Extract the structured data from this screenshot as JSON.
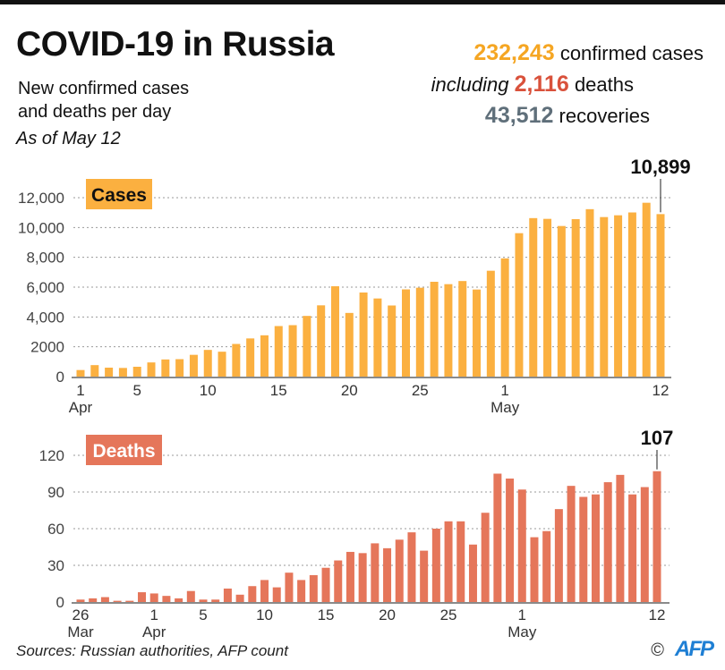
{
  "header": {
    "title": "COVID-19 in Russia",
    "subtitle_line1": "New confirmed cases",
    "subtitle_line2": "and deaths per day",
    "as_of": "As of May 12"
  },
  "stats": {
    "confirmed_value": "232,243",
    "confirmed_label": "confirmed cases",
    "including_label": "including",
    "deaths_value": "2,116",
    "deaths_label": "deaths",
    "recoveries_value": "43,512",
    "recoveries_label": "recoveries",
    "colors": {
      "cases": "#f5a623",
      "deaths": "#d9513b",
      "recoveries": "#5f6f7a"
    }
  },
  "footer": {
    "sources": "Sources: Russian authorities, AFP count",
    "copyright": "©",
    "logo": "AFP"
  },
  "chart_data": [
    {
      "type": "bar",
      "title": "Cases",
      "color": "#fbb040",
      "ylim": [
        0,
        12000
      ],
      "yticks": [
        0,
        2000,
        4000,
        6000,
        8000,
        10000,
        12000
      ],
      "ytick_labels": [
        "0",
        "2000",
        "4,000",
        "6,000",
        "8,000",
        "10,000",
        "12,000"
      ],
      "grid": true,
      "x": [
        "Apr 1",
        "Apr 2",
        "Apr 3",
        "Apr 4",
        "Apr 5",
        "Apr 6",
        "Apr 7",
        "Apr 8",
        "Apr 9",
        "Apr 10",
        "Apr 11",
        "Apr 12",
        "Apr 13",
        "Apr 14",
        "Apr 15",
        "Apr 16",
        "Apr 17",
        "Apr 18",
        "Apr 19",
        "Apr 20",
        "Apr 21",
        "Apr 22",
        "Apr 23",
        "Apr 24",
        "Apr 25",
        "Apr 26",
        "Apr 27",
        "Apr 28",
        "Apr 29",
        "Apr 30",
        "May 1",
        "May 2",
        "May 3",
        "May 4",
        "May 5",
        "May 6",
        "May 7",
        "May 8",
        "May 9",
        "May 10",
        "May 11",
        "May 12"
      ],
      "values": [
        440,
        770,
        600,
        580,
        660,
        950,
        1150,
        1170,
        1460,
        1790,
        1670,
        2190,
        2560,
        2770,
        3390,
        3450,
        4070,
        4780,
        6060,
        4270,
        5640,
        5240,
        4770,
        5850,
        5960,
        6360,
        6200,
        6410,
        5840,
        7100,
        7930,
        9620,
        10630,
        10580,
        10100,
        10560,
        11230,
        10700,
        10820,
        11010,
        11660,
        10899
      ],
      "xticks": [
        {
          "index": 0,
          "label": "1",
          "month": "Apr"
        },
        {
          "index": 4,
          "label": "5",
          "month": ""
        },
        {
          "index": 9,
          "label": "10",
          "month": ""
        },
        {
          "index": 14,
          "label": "15",
          "month": ""
        },
        {
          "index": 19,
          "label": "20",
          "month": ""
        },
        {
          "index": 24,
          "label": "25",
          "month": ""
        },
        {
          "index": 30,
          "label": "1",
          "month": "May"
        },
        {
          "index": 41,
          "label": "12",
          "month": ""
        }
      ],
      "annotation": {
        "index": 41,
        "text": "10,899"
      }
    },
    {
      "type": "bar",
      "title": "Deaths",
      "color": "#e5765a",
      "ylim": [
        0,
        120
      ],
      "yticks": [
        0,
        30,
        60,
        90,
        120
      ],
      "ytick_labels": [
        "0",
        "30",
        "60",
        "90",
        "120"
      ],
      "grid": true,
      "x": [
        "Mar 26",
        "Mar 27",
        "Mar 28",
        "Mar 29",
        "Mar 30",
        "Mar 31",
        "Apr 1",
        "Apr 2",
        "Apr 3",
        "Apr 4",
        "Apr 5",
        "Apr 6",
        "Apr 7",
        "Apr 8",
        "Apr 9",
        "Apr 10",
        "Apr 11",
        "Apr 12",
        "Apr 13",
        "Apr 14",
        "Apr 15",
        "Apr 16",
        "Apr 17",
        "Apr 18",
        "Apr 19",
        "Apr 20",
        "Apr 21",
        "Apr 22",
        "Apr 23",
        "Apr 24",
        "Apr 25",
        "Apr 26",
        "Apr 27",
        "Apr 28",
        "Apr 29",
        "Apr 30",
        "May 1",
        "May 2",
        "May 3",
        "May 4",
        "May 5",
        "May 6",
        "May 7",
        "May 8",
        "May 9",
        "May 10",
        "May 11",
        "May 12"
      ],
      "values": [
        2,
        3,
        4,
        1,
        1,
        8,
        7,
        5,
        3,
        9,
        2,
        2,
        11,
        6,
        13,
        18,
        12,
        24,
        18,
        22,
        28,
        34,
        41,
        40,
        48,
        44,
        51,
        57,
        42,
        60,
        66,
        66,
        47,
        73,
        105,
        101,
        92,
        53,
        58,
        76,
        95,
        86,
        88,
        98,
        104,
        88,
        94,
        107
      ],
      "xticks": [
        {
          "index": 0,
          "label": "26",
          "month": "Mar"
        },
        {
          "index": 6,
          "label": "1",
          "month": "Apr"
        },
        {
          "index": 10,
          "label": "5",
          "month": ""
        },
        {
          "index": 15,
          "label": "10",
          "month": ""
        },
        {
          "index": 20,
          "label": "15",
          "month": ""
        },
        {
          "index": 25,
          "label": "20",
          "month": ""
        },
        {
          "index": 30,
          "label": "25",
          "month": ""
        },
        {
          "index": 36,
          "label": "1",
          "month": "May"
        },
        {
          "index": 47,
          "label": "12",
          "month": ""
        }
      ],
      "annotation": {
        "index": 47,
        "text": "107"
      }
    }
  ]
}
